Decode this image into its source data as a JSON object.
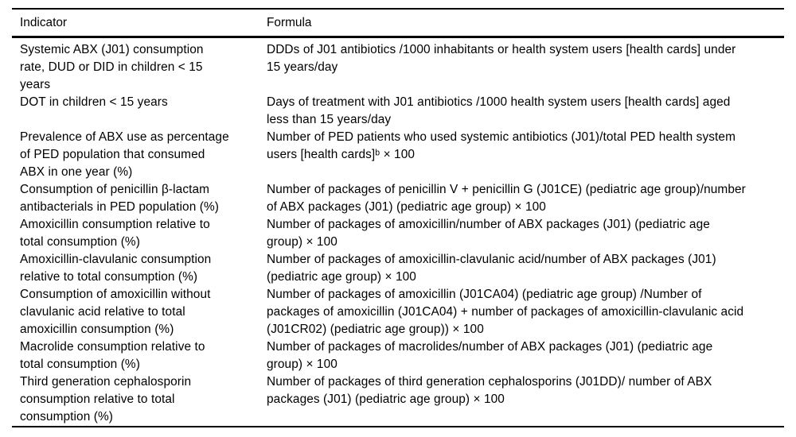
{
  "table": {
    "headers": [
      "Indicator",
      "Formula"
    ],
    "rows": [
      {
        "indicator": "Systemic ABX (J01) consumption\nrate, DUD or DID in children < 15\nyears",
        "formula": "DDDs of J01 antibiotics /1000 inhabitants or health system users [health cards] under\n15 years/day"
      },
      {
        "indicator": "DOT in children < 15 years",
        "formula": "Days of treatment with J01 antibiotics /1000 health system users [health cards] aged\nless than 15 years/day"
      },
      {
        "indicator": "Prevalence of ABX use as percentage\nof PED population that consumed\nABX in one year (%)",
        "formula": "Number of PED patients who used systemic antibiotics (J01)/total PED health system\nusers [health cards]ᵇ × 100"
      },
      {
        "indicator": "Consumption of penicillin β-lactam\nantibacterials in PED population (%)",
        "formula": "Number of packages of penicillin V + penicillin G (J01CE) (pediatric age group)/number\nof ABX packages (J01) (pediatric age group) × 100"
      },
      {
        "indicator": "Amoxicillin consumption relative to\ntotal consumption (%)",
        "formula": "Number of packages of amoxicillin/number of ABX packages (J01) (pediatric age\ngroup) × 100"
      },
      {
        "indicator": "Amoxicillin-clavulanic consumption\nrelative to total consumption (%)",
        "formula": "Number of packages of amoxicillin-clavulanic acid/number of ABX packages (J01)\n(pediatric age group) × 100"
      },
      {
        "indicator": "Consumption of amoxicillin without\nclavulanic acid relative to total\namoxicillin consumption (%)",
        "formula": "Number of packages of amoxicillin (J01CA04) (pediatric age group) /Number of\npackages of amoxicillin (J01CA04) + number of packages of amoxicillin-clavulanic acid\n(J01CR02) (pediatric age group)) × 100"
      },
      {
        "indicator": "Macrolide consumption relative to\ntotal consumption (%)",
        "formula": "Number of packages of macrolides/number of ABX packages (J01) (pediatric age\ngroup) × 100"
      },
      {
        "indicator": "Third generation cephalosporin\nconsumption relative to total\nconsumption (%)",
        "formula": "Number of packages of third generation cephalosporins (J01DD)/ number of ABX\npackages (J01) (pediatric age group) × 100"
      }
    ]
  }
}
